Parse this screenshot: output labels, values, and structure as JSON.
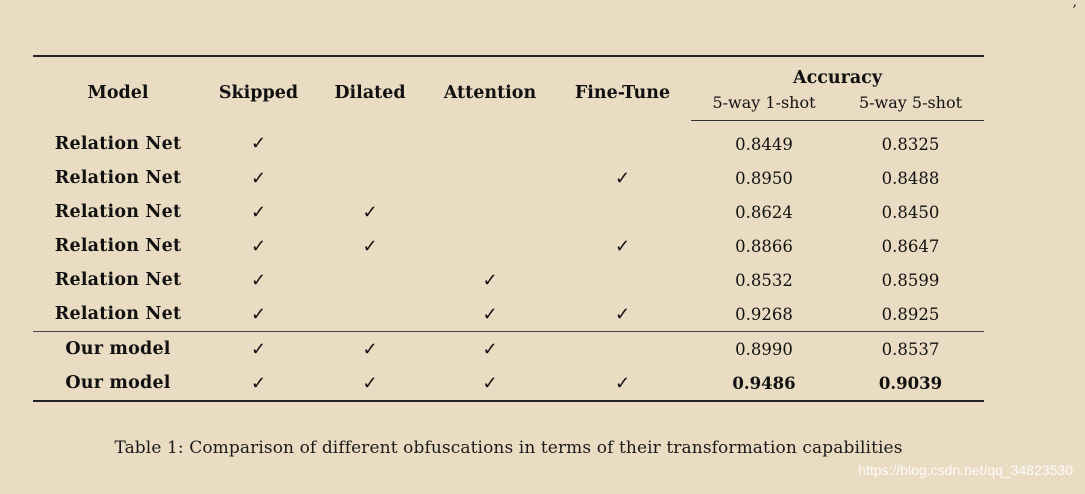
{
  "table": {
    "headers": {
      "model": "Model",
      "skipped": "Skipped",
      "dilated": "Dilated",
      "attention": "Attention",
      "finetune": "Fine-Tune",
      "accuracy": "Accuracy",
      "acc_1shot": "5-way 1-shot",
      "acc_5shot": "5-way 5-shot"
    },
    "check_symbol": "✓",
    "rows": [
      {
        "model": "Relation Net",
        "skipped": "✓",
        "dilated": "",
        "attention": "",
        "finetune": "",
        "acc1": "0.8449",
        "acc5": "0.8325"
      },
      {
        "model": "Relation Net",
        "skipped": "✓",
        "dilated": "",
        "attention": "",
        "finetune": "✓",
        "acc1": "0.8950",
        "acc5": "0.8488"
      },
      {
        "model": "Relation Net",
        "skipped": "✓",
        "dilated": "✓",
        "attention": "",
        "finetune": "",
        "acc1": "0.8624",
        "acc5": "0.8450"
      },
      {
        "model": "Relation Net",
        "skipped": "✓",
        "dilated": "✓",
        "attention": "",
        "finetune": "✓",
        "acc1": "0.8866",
        "acc5": "0.8647"
      },
      {
        "model": "Relation Net",
        "skipped": "✓",
        "dilated": "",
        "attention": "✓",
        "finetune": "",
        "acc1": "0.8532",
        "acc5": "0.8599"
      },
      {
        "model": "Relation Net",
        "skipped": "✓",
        "dilated": "",
        "attention": "✓",
        "finetune": "✓",
        "acc1": "0.9268",
        "acc5": "0.8925"
      },
      {
        "model": "Our model",
        "skipped": "✓",
        "dilated": "✓",
        "attention": "✓",
        "finetune": "",
        "acc1": "0.8990",
        "acc5": "0.8537"
      },
      {
        "model": "Our model",
        "skipped": "✓",
        "dilated": "✓",
        "attention": "✓",
        "finetune": "✓",
        "acc1": "0.9486",
        "acc5": "0.9039"
      }
    ]
  },
  "caption": "Table 1: Comparison of different obfuscations in terms of their transformation capabilities",
  "watermark": "https://blog.csdn.net/qq_34823530",
  "colors": {
    "background": "#e9dcc2",
    "text": "#111111",
    "watermark": "#ffffff"
  }
}
